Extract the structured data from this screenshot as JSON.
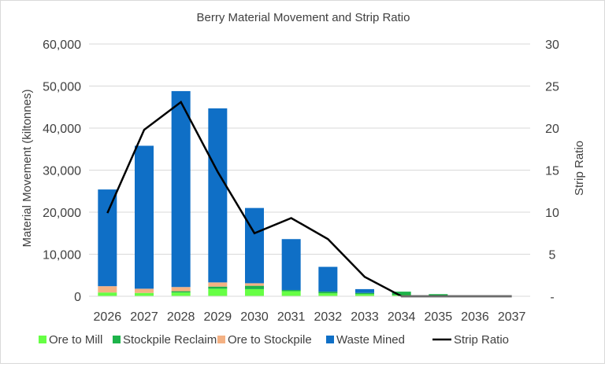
{
  "chart_data": {
    "type": "bar",
    "title": "Berry Material Movement and Strip Ratio",
    "xlabel": "",
    "ylabel": "Material Movement (kiltonnes)",
    "y2label": "Strip Ratio",
    "ylim": [
      0,
      60000
    ],
    "y2lim": [
      0,
      30
    ],
    "categories": [
      "2026",
      "2027",
      "2028",
      "2029",
      "2030",
      "2031",
      "2032",
      "2033",
      "2034",
      "2035",
      "2036",
      "2037"
    ],
    "yticks": [
      "0",
      "10,000",
      "20,000",
      "30,000",
      "40,000",
      "50,000",
      "60,000"
    ],
    "y2ticks": [
      "-",
      "5",
      "10",
      "15",
      "20",
      "25",
      "30"
    ],
    "stacked": true,
    "series": [
      {
        "name": "Ore to Mill",
        "color": "#66ff44",
        "values": [
          900,
          800,
          900,
          1800,
          1700,
          1200,
          700,
          500,
          300,
          200,
          0,
          0
        ]
      },
      {
        "name": "Stockpile Reclaim",
        "color": "#1db34a",
        "values": [
          0,
          0,
          300,
          500,
          800,
          300,
          400,
          300,
          800,
          300,
          0,
          0
        ]
      },
      {
        "name": "Ore to Stockpile",
        "color": "#f4b183",
        "values": [
          1500,
          1000,
          1000,
          1000,
          600,
          0,
          0,
          0,
          0,
          0,
          0,
          0
        ]
      },
      {
        "name": "Waste Mined",
        "color": "#0f6fc6",
        "values": [
          23000,
          34000,
          46600,
          41400,
          17900,
          12100,
          5900,
          900,
          0,
          0,
          0,
          0
        ]
      }
    ],
    "line": {
      "name": "Strip Ratio",
      "color": "#000000",
      "axis": "right",
      "values": [
        9.9,
        19.8,
        23.1,
        14.8,
        7.5,
        9.3,
        6.8,
        2.3,
        0,
        0,
        0,
        0
      ]
    },
    "legend_position": "bottom",
    "grid": true
  }
}
